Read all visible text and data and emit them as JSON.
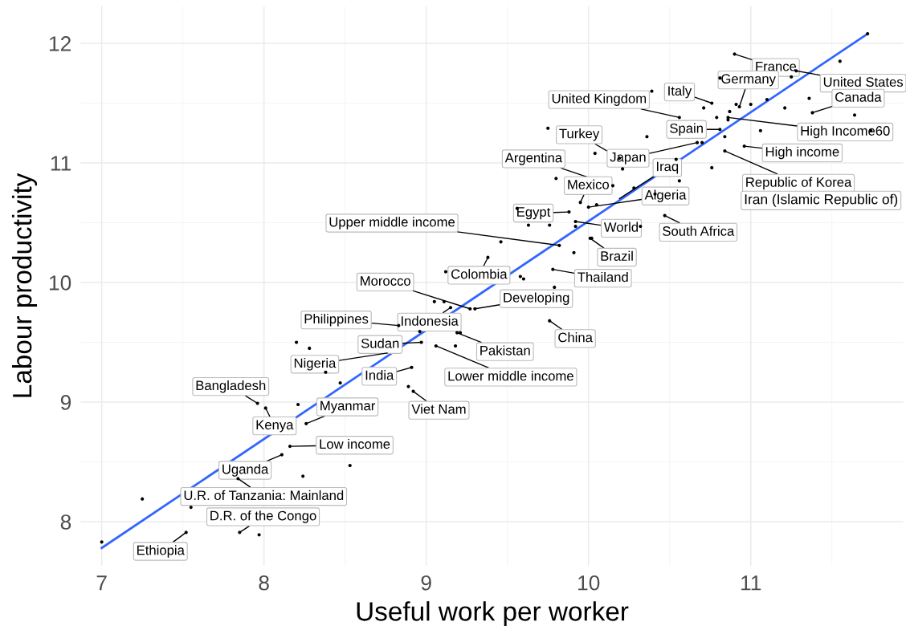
{
  "chart_data": {
    "type": "scatter",
    "xlabel": "Useful work per worker",
    "ylabel": "Labour productivity",
    "xlim": [
      6.87,
      11.94
    ],
    "ylim": [
      7.63,
      12.31
    ],
    "xticks": [
      7,
      8,
      9,
      10,
      11
    ],
    "yticks": [
      8,
      9,
      10,
      11,
      12
    ],
    "grid": true,
    "legend": false,
    "series": [
      {
        "type": "scatter",
        "marker": "circle",
        "color": "#000000",
        "x": [
          7.0,
          7.25,
          7.55,
          7.52,
          7.85,
          7.97,
          7.84,
          8.24,
          8.53,
          8.11,
          8.16,
          8.26,
          8.21,
          7.96,
          8.01,
          8.38,
          8.47,
          8.2,
          8.28,
          8.97,
          8.96,
          8.91,
          8.89,
          8.92,
          9.06,
          9.18,
          9.19,
          9.21,
          8.83,
          9.15,
          9.05,
          9.11,
          9.27,
          9.3,
          9.12,
          9.38,
          9.46,
          9.58,
          9.6,
          9.78,
          9.79,
          9.76,
          9.82,
          9.91,
          10.01,
          10.02,
          9.92,
          9.92,
          9.76,
          9.63,
          9.56,
          9.88,
          10.0,
          10.05,
          9.95,
          10.15,
          9.8,
          10.21,
          10.19,
          10.04,
          9.75,
          10.36,
          10.39,
          10.28,
          10.41,
          10.54,
          10.56,
          10.47,
          10.32,
          10.67,
          10.7,
          10.76,
          10.84,
          10.84,
          10.81,
          10.79,
          10.56,
          10.76,
          10.71,
          10.81,
          10.9,
          10.91,
          10.93,
          10.87,
          10.86,
          10.86,
          10.96,
          11.0,
          11.1,
          11.21,
          11.25,
          11.28,
          11.36,
          11.38,
          11.55,
          11.64,
          11.74,
          11.06,
          11.72
        ],
        "values": [
          7.83,
          8.19,
          8.12,
          7.91,
          7.91,
          7.89,
          8.36,
          8.38,
          8.47,
          8.56,
          8.63,
          8.82,
          8.98,
          8.99,
          8.95,
          9.25,
          9.16,
          9.5,
          9.45,
          9.5,
          9.59,
          9.29,
          9.13,
          9.09,
          9.47,
          9.47,
          9.58,
          9.58,
          9.64,
          9.79,
          9.84,
          9.84,
          9.78,
          9.78,
          10.09,
          10.21,
          10.34,
          10.05,
          10.03,
          10.11,
          9.96,
          9.68,
          10.31,
          10.25,
          10.37,
          10.37,
          10.51,
          10.47,
          10.48,
          10.48,
          10.62,
          10.59,
          10.63,
          10.65,
          10.67,
          10.81,
          10.87,
          10.95,
          11.04,
          11.08,
          11.29,
          11.22,
          11.6,
          10.79,
          10.74,
          11.03,
          10.85,
          10.56,
          10.47,
          11.17,
          11.17,
          10.96,
          11.1,
          11.22,
          11.28,
          11.38,
          11.38,
          11.5,
          11.46,
          11.71,
          11.91,
          11.49,
          11.47,
          11.43,
          11.38,
          11.36,
          11.14,
          11.49,
          11.53,
          11.46,
          11.72,
          11.77,
          11.54,
          11.42,
          11.85,
          11.4,
          11.27,
          11.27,
          12.08
        ]
      },
      {
        "type": "line",
        "color": "#3366ff",
        "x": [
          7.0,
          11.72
        ],
        "values": [
          7.78,
          12.08
        ]
      }
    ],
    "annotations": [
      {
        "text": "France",
        "x": 10.9,
        "y": 11.91
      },
      {
        "text": "United States",
        "x": 11.28,
        "y": 11.77
      },
      {
        "text": "Germany",
        "x": 10.93,
        "y": 11.47
      },
      {
        "text": "Italy",
        "x": 10.76,
        "y": 11.5
      },
      {
        "text": "Canada",
        "x": 11.38,
        "y": 11.42
      },
      {
        "text": "United Kingdom",
        "x": 10.56,
        "y": 11.38
      },
      {
        "text": "Spain",
        "x": 10.81,
        "y": 11.28
      },
      {
        "text": "High Income60",
        "x": 10.86,
        "y": 11.38
      },
      {
        "text": "Turkey",
        "x": 10.19,
        "y": 11.04
      },
      {
        "text": "Japan",
        "x": 10.67,
        "y": 11.17
      },
      {
        "text": "High income",
        "x": 10.96,
        "y": 11.14
      },
      {
        "text": "Argentina",
        "x": 10.15,
        "y": 10.81
      },
      {
        "text": "Iraq",
        "x": 10.19,
        "y": 10.7
      },
      {
        "text": "Republic of Korea",
        "x": 10.84,
        "y": 11.1
      },
      {
        "text": "Mexico",
        "x": 9.95,
        "y": 10.67
      },
      {
        "text": "Algeria",
        "x": 10.0,
        "y": 10.63
      },
      {
        "text": "Egypt",
        "x": 9.88,
        "y": 10.59
      },
      "Iran (Islamic Republic of)",
      {
        "text": "World",
        "x": 9.92,
        "y": 10.51
      },
      {
        "text": "South Africa",
        "x": 10.47,
        "y": 10.56
      },
      {
        "text": "Upper middle income",
        "x": 9.82,
        "y": 10.31
      },
      {
        "text": "Brazil",
        "x": 10.01,
        "y": 10.37
      },
      {
        "text": "Colombia",
        "x": 9.38,
        "y": 10.21
      },
      {
        "text": "Thailand",
        "x": 9.78,
        "y": 10.11
      },
      {
        "text": "Morocco",
        "x": 9.27,
        "y": 9.78
      },
      {
        "text": "Developing",
        "x": 9.3,
        "y": 9.78
      },
      {
        "text": "Philippines",
        "x": 8.83,
        "y": 9.64
      },
      {
        "text": "Indonesia",
        "x": 9.15,
        "y": 9.79
      },
      {
        "text": "China",
        "x": 9.76,
        "y": 9.68
      },
      {
        "text": "Sudan",
        "x": 8.97,
        "y": 9.5
      },
      {
        "text": "Pakistan",
        "x": 9.19,
        "y": 9.58
      },
      {
        "text": "Nigeria",
        "x": 8.76,
        "y": 9.41
      },
      {
        "text": "Lower middle income",
        "x": 9.06,
        "y": 9.47
      },
      {
        "text": "India",
        "x": 8.91,
        "y": 9.29
      },
      {
        "text": "Viet Nam",
        "x": 8.92,
        "y": 9.09
      },
      {
        "text": "Bangladesh",
        "x": 7.96,
        "y": 8.99
      },
      {
        "text": "Myanmar",
        "x": 8.26,
        "y": 8.82
      },
      {
        "text": "Kenya",
        "x": 8.01,
        "y": 8.95
      },
      {
        "text": "Low income",
        "x": 8.16,
        "y": 8.63
      },
      {
        "text": "Uganda",
        "x": 8.11,
        "y": 8.56
      },
      {
        "text": "U.R. of Tanzania: Mainland",
        "x": 7.84,
        "y": 8.36
      },
      {
        "text": "D.R. of the Congo",
        "x": 7.85,
        "y": 7.91
      },
      {
        "text": "Ethiopia",
        "x": 7.52,
        "y": 7.91
      }
    ]
  }
}
